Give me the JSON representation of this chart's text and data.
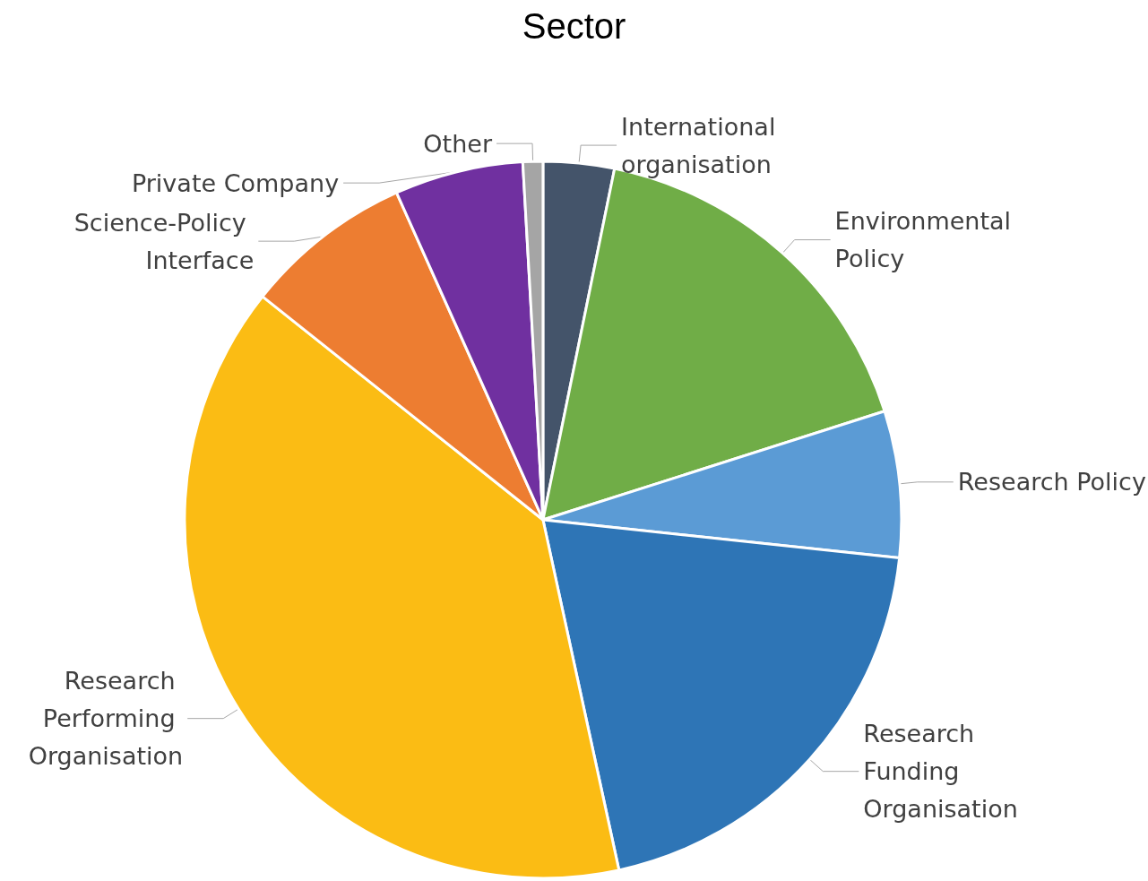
{
  "chart_data": {
    "type": "pie",
    "title": "Sector",
    "categories": [
      "International organisation",
      "Environmental Policy",
      "Research Policy",
      "Research Funding Organisation",
      "Research Performing Organisation",
      "Science-Policy Interface",
      "Private Company",
      "Other"
    ],
    "values": [
      3.2,
      16.9,
      6.6,
      19.9,
      39.1,
      7.6,
      5.8,
      0.9
    ],
    "colors": [
      "#44546a",
      "#70ad47",
      "#5b9bd5",
      "#2e75b6",
      "#fbbc14",
      "#ed7d31",
      "#7030a0",
      "#a5a5a5"
    ],
    "legend": false
  }
}
